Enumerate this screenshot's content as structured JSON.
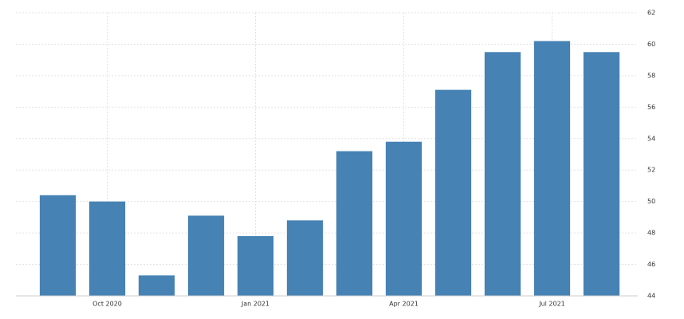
{
  "chart_data": {
    "type": "bar",
    "categories": [
      null,
      "Oct 2020",
      null,
      null,
      "Jan 2021",
      null,
      null,
      "Apr 2021",
      null,
      null,
      "Jul 2021",
      null
    ],
    "values": [
      50.4,
      50.0,
      45.3,
      49.1,
      47.8,
      48.8,
      53.2,
      53.8,
      57.1,
      59.5,
      60.2,
      59.5
    ],
    "color": "#4682b4",
    "ylim": [
      44,
      62
    ],
    "yticks": [
      44,
      46,
      48,
      50,
      52,
      54,
      56,
      58,
      60,
      62
    ],
    "grid": true
  }
}
